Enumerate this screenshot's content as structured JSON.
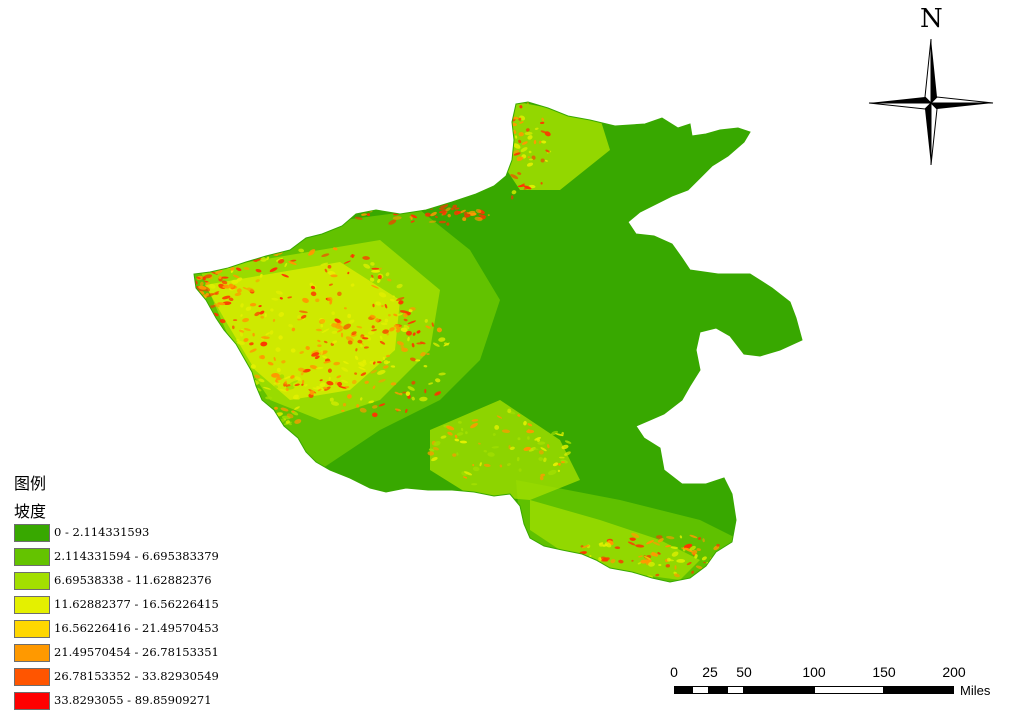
{
  "north_arrow": {
    "label": "N",
    "icon": "compass-rose-icon"
  },
  "legend": {
    "title": "图例",
    "field": "坡度",
    "classes": [
      {
        "label": "0 - 2.114331593",
        "color": "#38a800"
      },
      {
        "label": "2.114331594 - 6.695383379",
        "color": "#64c300"
      },
      {
        "label": "6.69538338 - 11.62882376",
        "color": "#a3df00"
      },
      {
        "label": "11.62882377 - 16.56226415",
        "color": "#e4f000"
      },
      {
        "label": "16.56226416 - 21.49570453",
        "color": "#ffd700"
      },
      {
        "label": "21.49570454 - 26.78153351",
        "color": "#ff9900"
      },
      {
        "label": "26.78153352 - 33.82930549",
        "color": "#ff5500"
      },
      {
        "label": "33.8293055 - 89.85909271",
        "color": "#ff0000"
      }
    ]
  },
  "scalebar": {
    "ticks": [
      "0",
      "25",
      "50",
      "100",
      "150",
      "200"
    ],
    "units": "Miles"
  },
  "colors": {
    "base_green": "#38a800",
    "mountain_green": "#64c300",
    "light_green": "#a3df00",
    "yellow": "#e4f000",
    "orange": "#ff9900",
    "red": "#ff3300"
  }
}
